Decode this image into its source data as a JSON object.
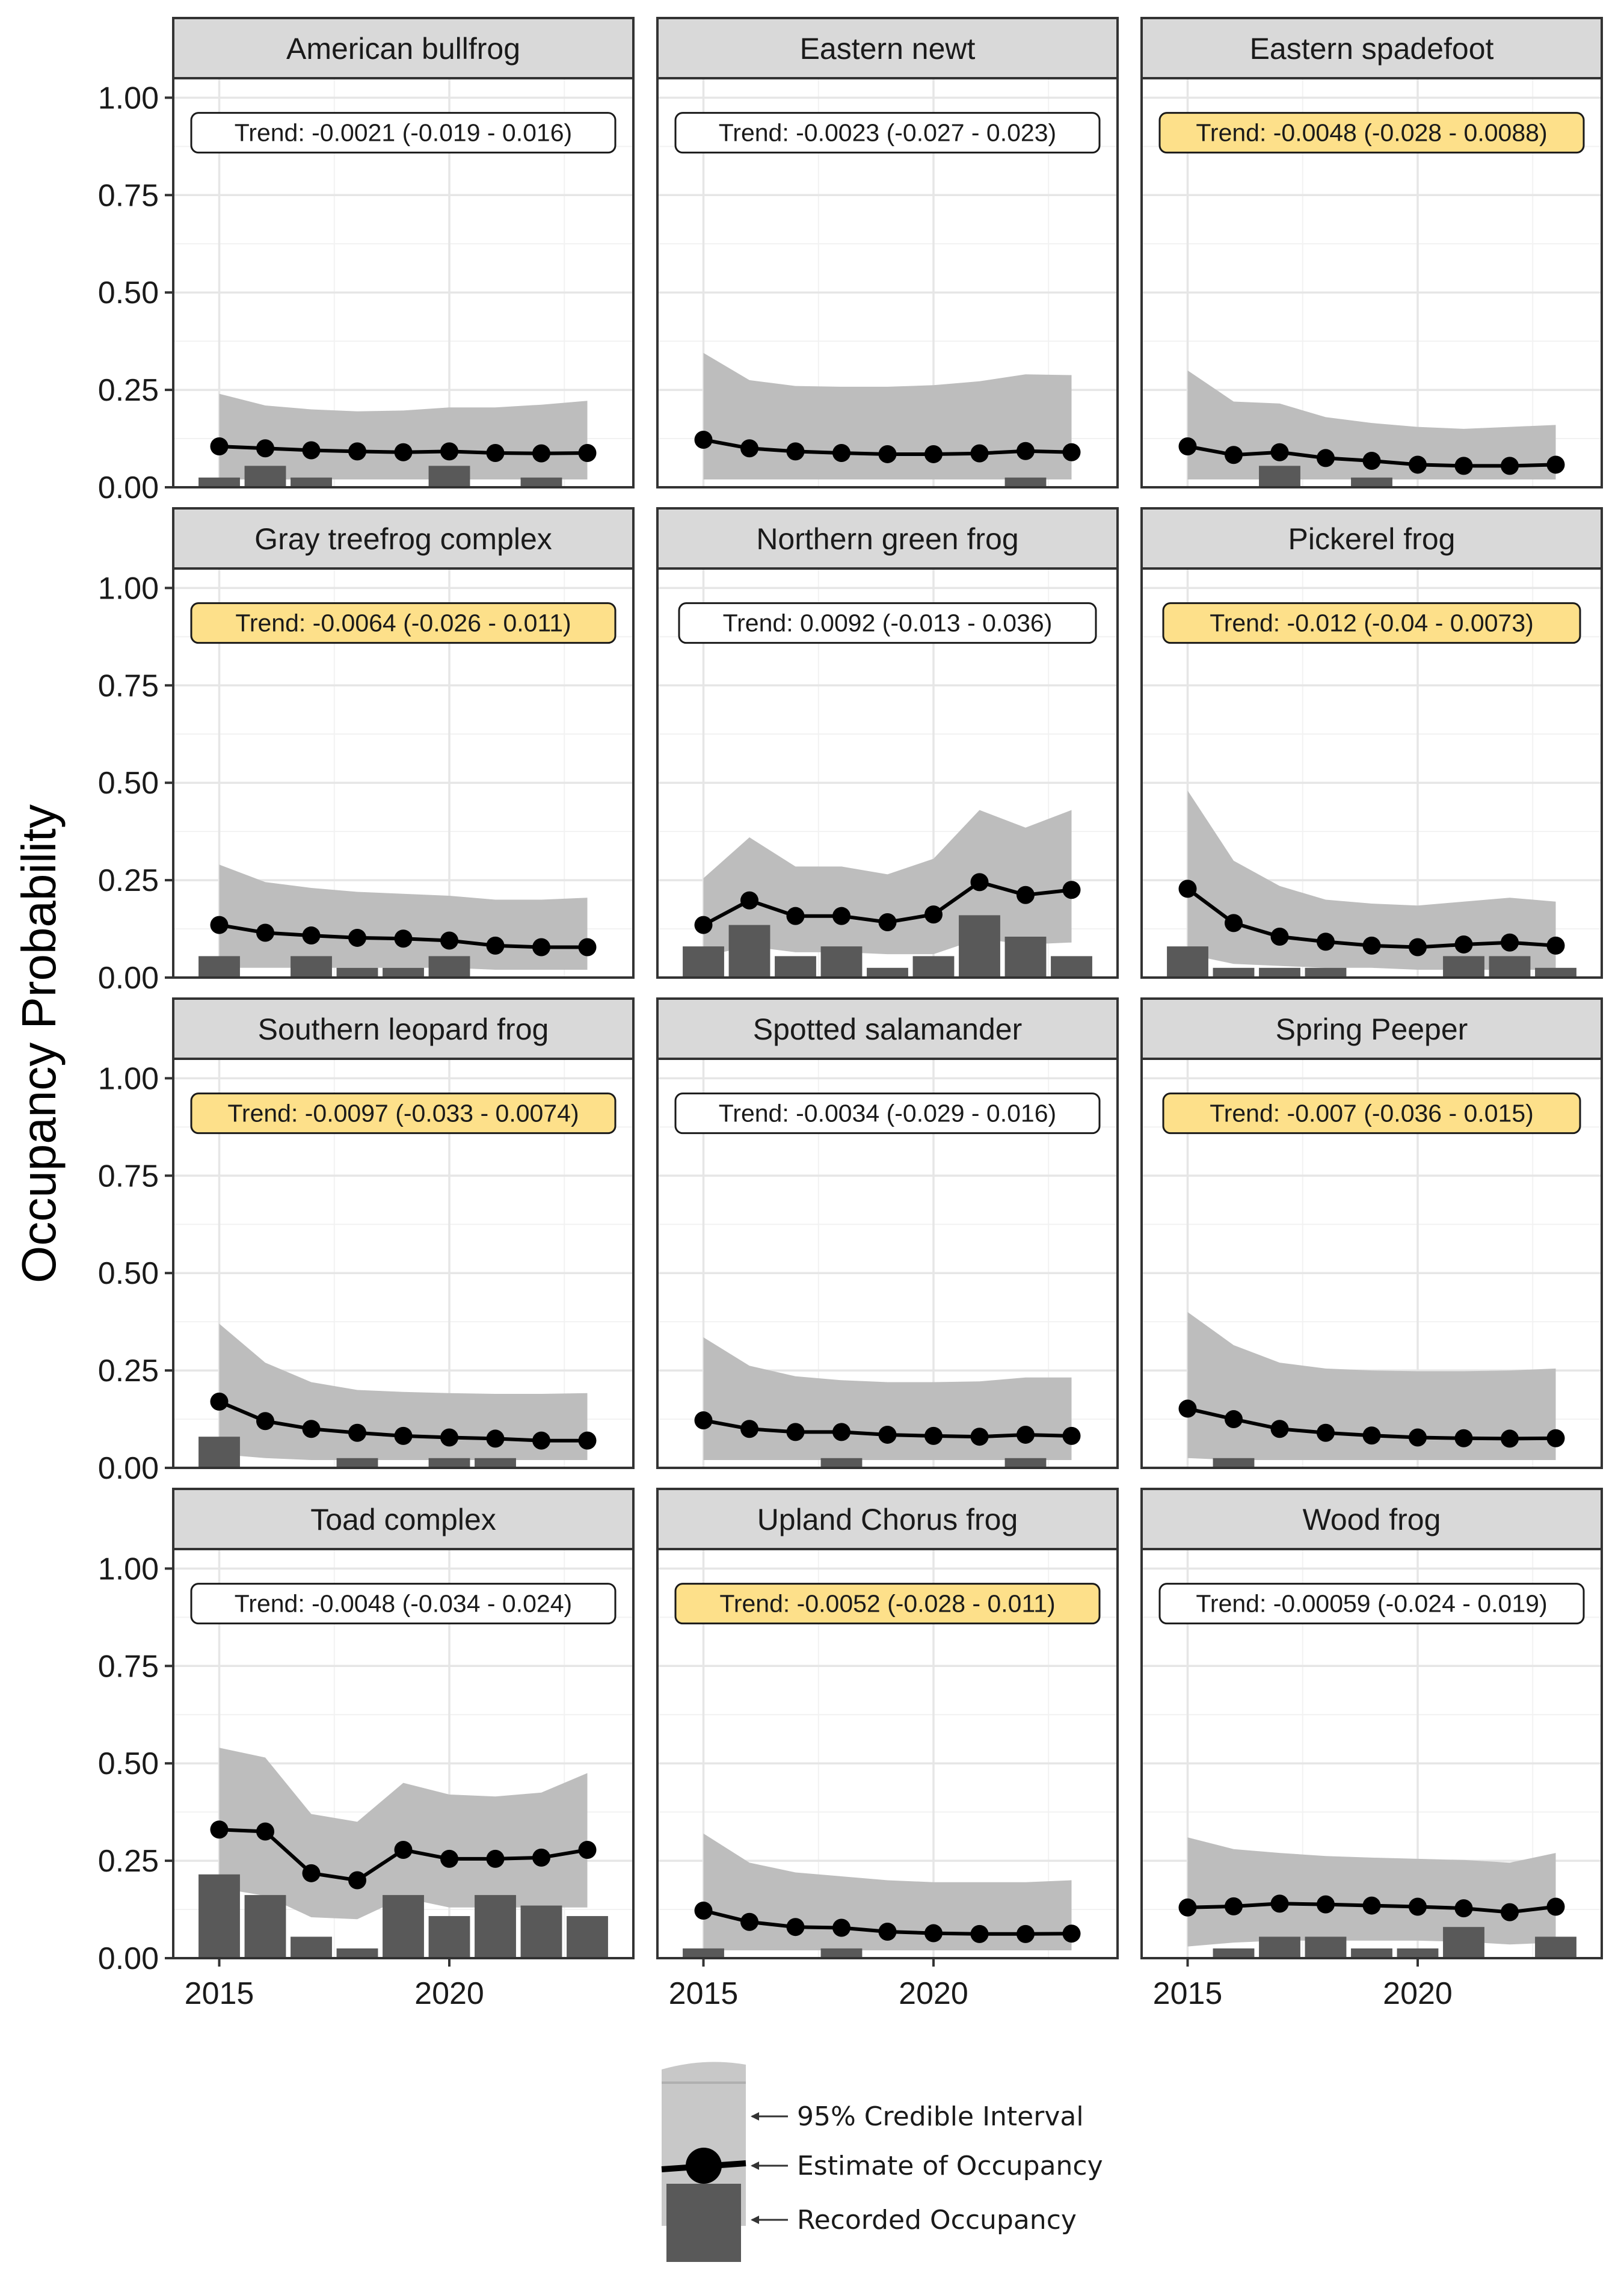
{
  "chart_data": {
    "type": "line",
    "layout": "facet grid 4 x 3",
    "ylabel": "Occupancy Probability",
    "xlabel": "",
    "x_ticks": [
      2015,
      2020
    ],
    "y_ticks": [
      "0.00",
      "0.25",
      "0.50",
      "0.75",
      "1.00"
    ],
    "xlim": [
      2014,
      2024
    ],
    "ylim": [
      0,
      1.05
    ],
    "years": [
      2015,
      2016,
      2017,
      2018,
      2019,
      2020,
      2021,
      2022,
      2023
    ],
    "grid": true,
    "colors": {
      "highlight_trend": "#fde08a",
      "normal_trend": "#ffffff",
      "interval": "#bdbdbd",
      "bar": "#595959",
      "estimate": "#000000"
    },
    "panels": [
      {
        "species": "American bullfrog",
        "trend": "Trend: -0.0021 (-0.019 - 0.016)",
        "highlight": false,
        "estimate": [
          0.105,
          0.1,
          0.095,
          0.092,
          0.09,
          0.092,
          0.088,
          0.087,
          0.088
        ],
        "lower": [
          0.02,
          0.02,
          0.02,
          0.02,
          0.02,
          0.02,
          0.02,
          0.02,
          0.02
        ],
        "upper": [
          0.24,
          0.21,
          0.2,
          0.195,
          0.197,
          0.205,
          0.205,
          0.212,
          0.222
        ],
        "recorded": [
          0.025,
          0.055,
          0.025,
          0,
          0,
          0.055,
          0,
          0.025,
          0
        ]
      },
      {
        "species": "Eastern newt",
        "trend": "Trend: -0.0023 (-0.027 - 0.023)",
        "highlight": false,
        "estimate": [
          0.122,
          0.1,
          0.092,
          0.088,
          0.085,
          0.085,
          0.087,
          0.093,
          0.09
        ],
        "lower": [
          0.02,
          0.02,
          0.02,
          0.02,
          0.02,
          0.02,
          0.02,
          0.02,
          0.02
        ],
        "upper": [
          0.345,
          0.275,
          0.26,
          0.258,
          0.258,
          0.262,
          0.272,
          0.29,
          0.288
        ],
        "recorded": [
          0,
          0,
          0,
          0,
          0,
          0,
          0,
          0.025,
          0
        ]
      },
      {
        "species": "Eastern spadefoot",
        "trend": "Trend: -0.0048 (-0.028 - 0.0088)",
        "highlight": true,
        "estimate": [
          0.105,
          0.083,
          0.09,
          0.075,
          0.068,
          0.058,
          0.055,
          0.055,
          0.058
        ],
        "lower": [
          0.02,
          0.02,
          0.02,
          0.02,
          0.02,
          0.02,
          0.02,
          0.02,
          0.02
        ],
        "upper": [
          0.3,
          0.22,
          0.215,
          0.18,
          0.165,
          0.155,
          0.15,
          0.155,
          0.16
        ],
        "recorded": [
          0,
          0,
          0.055,
          0,
          0.025,
          0,
          0,
          0,
          0
        ]
      },
      {
        "species": "Gray treefrog complex",
        "trend": "Trend: -0.0064 (-0.026 - 0.011)",
        "highlight": true,
        "estimate": [
          0.135,
          0.115,
          0.108,
          0.102,
          0.1,
          0.095,
          0.082,
          0.078,
          0.078
        ],
        "lower": [
          0.025,
          0.025,
          0.025,
          0.025,
          0.025,
          0.025,
          0.02,
          0.02,
          0.02
        ],
        "upper": [
          0.29,
          0.245,
          0.23,
          0.22,
          0.215,
          0.21,
          0.2,
          0.2,
          0.205
        ],
        "recorded": [
          0.055,
          0,
          0.055,
          0.025,
          0.025,
          0.055,
          0,
          0,
          0
        ]
      },
      {
        "species": "Northern green frog",
        "trend": "Trend: 0.0092 (-0.013 - 0.036)",
        "highlight": false,
        "estimate": [
          0.135,
          0.198,
          0.158,
          0.158,
          0.142,
          0.162,
          0.245,
          0.212,
          0.225
        ],
        "lower": [
          0.055,
          0.08,
          0.065,
          0.065,
          0.06,
          0.06,
          0.1,
          0.085,
          0.09
        ],
        "upper": [
          0.255,
          0.36,
          0.285,
          0.285,
          0.265,
          0.305,
          0.43,
          0.385,
          0.43
        ],
        "recorded": [
          0.08,
          0.135,
          0.055,
          0.08,
          0.025,
          0.055,
          0.16,
          0.105,
          0.055
        ]
      },
      {
        "species": "Pickerel frog",
        "trend": "Trend: -0.012 (-0.04 - 0.0073)",
        "highlight": true,
        "estimate": [
          0.228,
          0.14,
          0.105,
          0.092,
          0.082,
          0.078,
          0.085,
          0.09,
          0.082
        ],
        "lower": [
          0.06,
          0.035,
          0.03,
          0.025,
          0.025,
          0.02,
          0.02,
          0.02,
          0.02
        ],
        "upper": [
          0.48,
          0.3,
          0.235,
          0.2,
          0.19,
          0.185,
          0.195,
          0.205,
          0.195
        ],
        "recorded": [
          0.08,
          0.025,
          0.025,
          0.025,
          0,
          0,
          0.055,
          0.055,
          0.025
        ]
      },
      {
        "species": "Southern leopard frog",
        "trend": "Trend: -0.0097 (-0.033 - 0.0074)",
        "highlight": true,
        "estimate": [
          0.17,
          0.12,
          0.1,
          0.09,
          0.082,
          0.078,
          0.075,
          0.07,
          0.07
        ],
        "lower": [
          0.035,
          0.025,
          0.02,
          0.02,
          0.02,
          0.02,
          0.02,
          0.02,
          0.02
        ],
        "upper": [
          0.37,
          0.27,
          0.22,
          0.2,
          0.195,
          0.192,
          0.19,
          0.19,
          0.192
        ],
        "recorded": [
          0.08,
          0,
          0,
          0.025,
          0,
          0.025,
          0.025,
          0,
          0
        ]
      },
      {
        "species": "Spotted salamander",
        "trend": "Trend: -0.0034 (-0.029 - 0.016)",
        "highlight": false,
        "estimate": [
          0.122,
          0.1,
          0.092,
          0.092,
          0.085,
          0.082,
          0.08,
          0.085,
          0.082
        ],
        "lower": [
          0.02,
          0.02,
          0.02,
          0.02,
          0.02,
          0.02,
          0.02,
          0.02,
          0.02
        ],
        "upper": [
          0.335,
          0.262,
          0.235,
          0.225,
          0.22,
          0.22,
          0.222,
          0.232,
          0.232
        ],
        "recorded": [
          0,
          0,
          0,
          0.025,
          0,
          0,
          0,
          0.025,
          0
        ]
      },
      {
        "species": "Spring Peeper",
        "trend": "Trend: -0.007 (-0.036 - 0.015)",
        "highlight": true,
        "estimate": [
          0.152,
          0.125,
          0.1,
          0.09,
          0.083,
          0.078,
          0.076,
          0.075,
          0.076
        ],
        "lower": [
          0.025,
          0.02,
          0.02,
          0.02,
          0.02,
          0.02,
          0.02,
          0.02,
          0.02
        ],
        "upper": [
          0.4,
          0.315,
          0.27,
          0.255,
          0.25,
          0.248,
          0.248,
          0.25,
          0.255
        ],
        "recorded": [
          0,
          0.025,
          0,
          0,
          0,
          0,
          0,
          0,
          0
        ]
      },
      {
        "species": "Toad complex",
        "trend": "Trend: -0.0048 (-0.034 - 0.024)",
        "highlight": false,
        "estimate": [
          0.33,
          0.325,
          0.218,
          0.2,
          0.278,
          0.255,
          0.255,
          0.258,
          0.278
        ],
        "lower": [
          0.18,
          0.16,
          0.105,
          0.1,
          0.155,
          0.13,
          0.13,
          0.13,
          0.13
        ],
        "upper": [
          0.54,
          0.515,
          0.37,
          0.35,
          0.45,
          0.42,
          0.415,
          0.425,
          0.475
        ],
        "recorded": [
          0.215,
          0.162,
          0.055,
          0.025,
          0.162,
          0.108,
          0.162,
          0.135,
          0.108
        ]
      },
      {
        "species": "Upland Chorus frog",
        "trend": "Trend: -0.0052 (-0.028 - 0.011)",
        "highlight": true,
        "estimate": [
          0.122,
          0.093,
          0.08,
          0.078,
          0.068,
          0.064,
          0.062,
          0.062,
          0.063
        ],
        "lower": [
          0.02,
          0.02,
          0.02,
          0.02,
          0.02,
          0.02,
          0.02,
          0.02,
          0.02
        ],
        "upper": [
          0.32,
          0.245,
          0.22,
          0.21,
          0.2,
          0.195,
          0.195,
          0.195,
          0.2
        ],
        "recorded": [
          0.025,
          0,
          0,
          0.025,
          0,
          0,
          0,
          0,
          0
        ]
      },
      {
        "species": "Wood frog",
        "trend": "Trend: -0.00059 (-0.024 - 0.019)",
        "highlight": false,
        "estimate": [
          0.13,
          0.133,
          0.14,
          0.138,
          0.135,
          0.132,
          0.128,
          0.118,
          0.132
        ],
        "lower": [
          0.03,
          0.04,
          0.045,
          0.045,
          0.045,
          0.045,
          0.042,
          0.035,
          0.04
        ],
        "upper": [
          0.31,
          0.28,
          0.27,
          0.262,
          0.258,
          0.255,
          0.252,
          0.245,
          0.27
        ],
        "recorded": [
          0,
          0.025,
          0.055,
          0.055,
          0.025,
          0.025,
          0.08,
          0,
          0.055
        ]
      }
    ],
    "legend": {
      "interval_label": "95% Credible Interval",
      "estimate_label": "Estimate of Occupancy",
      "recorded_label": "Recorded Occupancy"
    }
  }
}
